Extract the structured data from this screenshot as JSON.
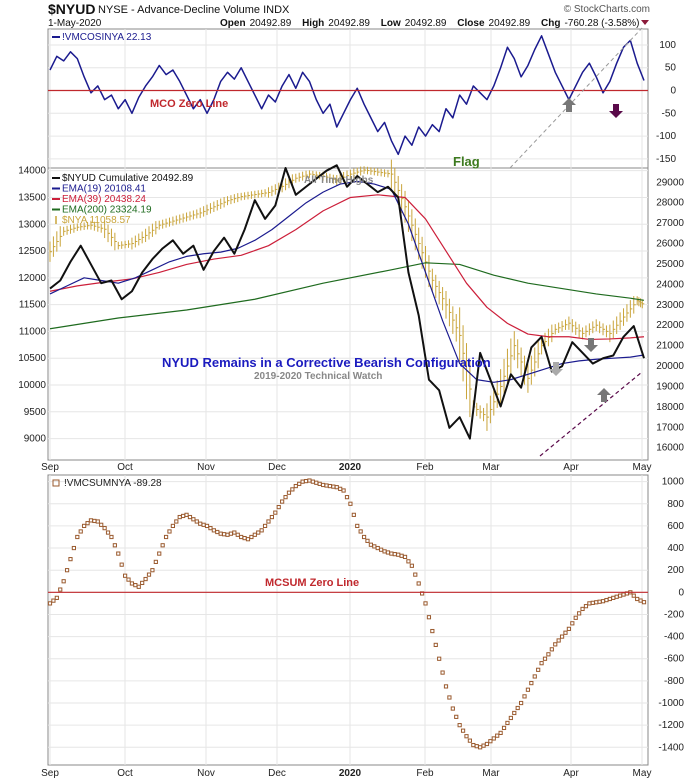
{
  "header": {
    "symbol": "$NYUD",
    "name": "NYSE - Advance-Decline Volume INDX",
    "date": "1-May-2020",
    "open_label": "Open",
    "open": "20492.89",
    "high_label": "High",
    "high": "20492.89",
    "low_label": "Low",
    "low": "20492.89",
    "close_label": "Close",
    "close": "20492.89",
    "chg_label": "Chg",
    "chg": "-760.28 (-3.58%)",
    "brand": "© StockCharts.com"
  },
  "colors": {
    "navy": "#1b1b8f",
    "black": "#111111",
    "red": "#cc1f3a",
    "green": "#1f6b1f",
    "gold": "#c9a43a",
    "brown": "#9a5a2e",
    "zero": "#c0282d",
    "grey_arrow": "#777777",
    "purple_arrow": "#5a0a4a",
    "flag": "#3d7a1f"
  },
  "x_months": [
    "Sep",
    "Oct",
    "Nov",
    "Dec",
    "2020",
    "Feb",
    "Mar",
    "Apr",
    "May"
  ],
  "mco": {
    "legend": "!VMCOSINYA 22.13",
    "zero_label": "MCO Zero Line",
    "flag_label": "Flag",
    "y_ticks": [
      "100",
      "50",
      "0",
      "-50",
      "-100",
      "-150"
    ],
    "ylim": [
      -170,
      135
    ]
  },
  "main": {
    "legend": [
      {
        "label": "$NYUD Cumulative 20492.89",
        "color": "#111111"
      },
      {
        "label": "EMA(19) 20108.41",
        "color": "#1b1b8f"
      },
      {
        "label": "EMA(39) 20438.24",
        "color": "#cc1f3a"
      },
      {
        "label": "EMA(200) 23324.19",
        "color": "#1f6b1f"
      },
      {
        "label": "$NYA 11058.57",
        "color": "#c9a43a"
      }
    ],
    "left_ticks": [
      "14000",
      "13500",
      "13000",
      "12500",
      "12000",
      "11500",
      "11000",
      "10500",
      "10000",
      "9500",
      "9000"
    ],
    "right_ticks": [
      "29000",
      "28000",
      "27000",
      "26000",
      "25000",
      "24000",
      "23000",
      "22000",
      "21000",
      "20000",
      "19000",
      "18000",
      "17000",
      "16000"
    ],
    "all_time_highs": "All Time Highs",
    "title": "NYUD Remains in a Corrective Bearish Configuration",
    "subtitle": "2019-2020 Technical Watch",
    "left_ylim": [
      8600,
      14050
    ],
    "right_ylim": [
      15400,
      29700
    ]
  },
  "mcsum": {
    "legend": "!VMCSUMNYA -89.28",
    "zero_label": "MCSUM Zero Line",
    "y_ticks": [
      "1000",
      "800",
      "600",
      "400",
      "200",
      "0",
      "-200",
      "-400",
      "-600",
      "-800",
      "-1000",
      "-1200",
      "-1400"
    ],
    "ylim": [
      -1560,
      1060
    ]
  },
  "chart_data": [
    {
      "type": "line",
      "title": "",
      "series": [
        {
          "name": "!VMCOSINYA",
          "x": [
            0,
            2,
            4,
            6,
            8,
            10,
            12,
            14,
            16,
            18,
            20,
            22,
            24,
            26,
            28,
            30,
            32,
            34,
            36,
            38,
            40,
            42,
            44,
            46,
            48,
            50,
            52,
            54,
            56,
            58,
            60,
            62,
            64,
            66,
            68,
            70,
            72,
            74,
            76,
            78,
            80,
            82,
            84,
            86,
            88,
            90,
            92,
            94,
            96,
            98,
            100,
            102,
            104,
            106,
            108,
            110,
            112,
            114,
            116,
            118,
            120,
            122,
            124,
            126,
            128,
            130,
            132,
            134,
            136,
            138,
            140,
            142,
            144,
            146,
            148,
            150,
            152,
            154,
            156,
            158,
            160,
            162,
            164,
            166,
            168,
            170,
            172,
            174
          ],
          "values": [
            45,
            75,
            65,
            85,
            70,
            30,
            -5,
            10,
            -20,
            -10,
            -40,
            -20,
            -50,
            -15,
            10,
            30,
            55,
            35,
            45,
            20,
            -10,
            -40,
            -20,
            -50,
            -20,
            20,
            40,
            25,
            50,
            20,
            -10,
            -40,
            -10,
            -25,
            10,
            35,
            5,
            40,
            20,
            -20,
            -50,
            -30,
            -80,
            -50,
            -20,
            5,
            -30,
            -60,
            -90,
            -70,
            -110,
            -140,
            -100,
            -120,
            -80,
            -100,
            -75,
            -90,
            -40,
            -60,
            -10,
            -30,
            10,
            -5,
            -20,
            10,
            50,
            95,
            70,
            30,
            55,
            90,
            120,
            80,
            40,
            10,
            -20,
            10,
            40,
            60,
            30,
            -5,
            20,
            60,
            95,
            110,
            60,
            22
          ]
        }
      ],
      "ylim": [
        -170,
        135
      ]
    },
    {
      "type": "line",
      "title": "NYUD Remains in a Corrective Bearish Configuration",
      "series": [
        {
          "name": "$NYUD Cumulative",
          "x": [
            0,
            3,
            6,
            9,
            12,
            15,
            18,
            21,
            24,
            27,
            30,
            33,
            36,
            39,
            42,
            45,
            48,
            51,
            54,
            57,
            60,
            63,
            66,
            69,
            72,
            75,
            78,
            81,
            84,
            87,
            90,
            93,
            96,
            99,
            102,
            105,
            108,
            111,
            114,
            117,
            120,
            123,
            126,
            129,
            132,
            135,
            138,
            141,
            144,
            147,
            150,
            153,
            156,
            159,
            162,
            165,
            168,
            171,
            174
          ],
          "values": [
            11800,
            11950,
            12300,
            12600,
            12250,
            11900,
            11950,
            11600,
            11750,
            12100,
            12350,
            12550,
            12700,
            12450,
            12600,
            12150,
            12500,
            12750,
            12450,
            12900,
            13450,
            13100,
            13350,
            14050,
            13550,
            13700,
            13850,
            14000,
            14100,
            13700,
            13900,
            13750,
            13600,
            13700,
            13500,
            12100,
            11300,
            10100,
            9900,
            9200,
            9400,
            9000,
            10600,
            10100,
            9600,
            10200,
            9950,
            10700,
            10900,
            10250,
            10350,
            10800,
            10600,
            10400,
            10500,
            10550,
            10900,
            11100,
            10500
          ]
        },
        {
          "name": "EMA(19)",
          "x": [
            0,
            5,
            10,
            15,
            20,
            25,
            30,
            35,
            40,
            45,
            50,
            55,
            60,
            65,
            70,
            75,
            80,
            85,
            90,
            95,
            100,
            105,
            110,
            115,
            120,
            125,
            130,
            135,
            140,
            145,
            150,
            155,
            160,
            165,
            170,
            174
          ],
          "values": [
            11700,
            11850,
            12000,
            11950,
            11900,
            12000,
            12150,
            12300,
            12400,
            12450,
            12480,
            12550,
            12700,
            12900,
            13150,
            13400,
            13600,
            13750,
            13800,
            13750,
            13650,
            13000,
            12100,
            11200,
            10400,
            10100,
            10050,
            10100,
            10200,
            10300,
            10400,
            10450,
            10480,
            10500,
            10520,
            10560
          ]
        },
        {
          "name": "EMA(39)",
          "x": [
            0,
            8,
            16,
            24,
            32,
            40,
            48,
            56,
            64,
            72,
            80,
            88,
            96,
            104,
            110,
            116,
            122,
            128,
            134,
            140,
            146,
            152,
            158,
            164,
            170,
            174
          ],
          "values": [
            11750,
            11850,
            11920,
            11980,
            12100,
            12250,
            12350,
            12420,
            12600,
            12900,
            13250,
            13500,
            13550,
            13500,
            13100,
            12500,
            11900,
            11450,
            11150,
            10950,
            10900,
            10900,
            10850,
            10860,
            10880,
            10900
          ]
        },
        {
          "name": "EMA(200)",
          "x": [
            0,
            20,
            40,
            60,
            80,
            100,
            110,
            120,
            130,
            140,
            150,
            160,
            170,
            174
          ],
          "values": [
            11050,
            11250,
            11400,
            11600,
            11900,
            12150,
            12280,
            12250,
            12050,
            11900,
            11800,
            11700,
            11620,
            11580
          ]
        },
        {
          "name": "$NYA",
          "x": [
            0,
            4,
            8,
            12,
            16,
            20,
            24,
            28,
            32,
            36,
            40,
            44,
            48,
            52,
            56,
            60,
            64,
            68,
            72,
            76,
            80,
            84,
            88,
            92,
            96,
            100,
            104,
            108,
            112,
            116,
            120,
            124,
            128,
            132,
            136,
            140,
            144,
            148,
            152,
            156,
            160,
            164,
            168,
            172,
            174
          ],
          "values": [
            25600,
            26600,
            26800,
            26900,
            26700,
            25900,
            26000,
            26400,
            26900,
            27100,
            27300,
            27500,
            27800,
            28100,
            28300,
            28400,
            28500,
            28800,
            29200,
            29400,
            29300,
            29100,
            29400,
            29600,
            29500,
            29400,
            27800,
            26000,
            24200,
            23000,
            21500,
            18000,
            17500,
            19000,
            21000,
            19400,
            21000,
            21800,
            22100,
            21600,
            22000,
            21600,
            22400,
            23200,
            23000
          ]
        }
      ],
      "left_ylim": [
        8600,
        14050
      ],
      "right_ylim": [
        15400,
        29700
      ]
    },
    {
      "type": "scatter",
      "title": "",
      "series": [
        {
          "name": "!VMCSUMNYA",
          "x": [
            0,
            2,
            4,
            6,
            8,
            10,
            12,
            14,
            16,
            18,
            20,
            22,
            24,
            26,
            28,
            30,
            32,
            34,
            36,
            38,
            40,
            42,
            44,
            46,
            48,
            50,
            52,
            54,
            56,
            58,
            60,
            62,
            64,
            66,
            68,
            70,
            72,
            74,
            76,
            78,
            80,
            82,
            84,
            86,
            88,
            90,
            92,
            94,
            96,
            98,
            100,
            102,
            104,
            106,
            108,
            110,
            112,
            114,
            116,
            118,
            120,
            122,
            124,
            126,
            128,
            130,
            132,
            134,
            136,
            138,
            140,
            142,
            144,
            146,
            148,
            150,
            152,
            154,
            156,
            158,
            160,
            162,
            164,
            166,
            168,
            170,
            172,
            174
          ],
          "values": [
            -100,
            -50,
            100,
            300,
            500,
            600,
            650,
            640,
            580,
            500,
            350,
            150,
            80,
            50,
            120,
            200,
            350,
            500,
            600,
            680,
            700,
            660,
            620,
            600,
            560,
            530,
            520,
            540,
            500,
            480,
            520,
            560,
            640,
            720,
            820,
            900,
            960,
            1000,
            1010,
            990,
            970,
            960,
            950,
            920,
            800,
            600,
            500,
            430,
            400,
            370,
            350,
            340,
            320,
            240,
            80,
            -100,
            -350,
            -600,
            -850,
            -1050,
            -1200,
            -1300,
            -1380,
            -1400,
            -1370,
            -1320,
            -1270,
            -1180,
            -1090,
            -1000,
            -880,
            -760,
            -640,
            -560,
            -470,
            -400,
            -330,
            -230,
            -150,
            -100,
            -90,
            -80,
            -60,
            -40,
            -20,
            0,
            -60,
            -89
          ]
        }
      ],
      "ylim": [
        -1560,
        1060
      ]
    }
  ]
}
